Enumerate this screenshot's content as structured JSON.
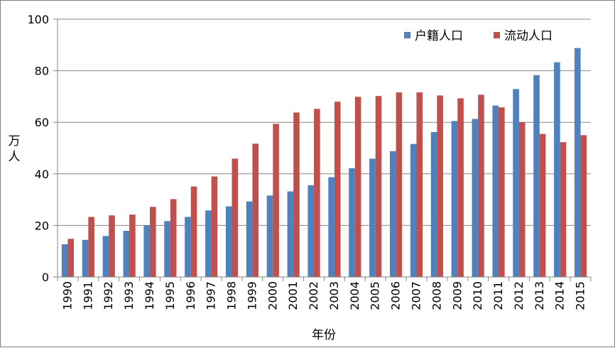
{
  "chart_data": {
    "type": "bar",
    "title": "",
    "xlabel": "年份",
    "ylabel": "万人",
    "ylim": [
      0,
      100
    ],
    "yticks": [
      0,
      20,
      40,
      60,
      80,
      100
    ],
    "grid": true,
    "legend_position": "top-right",
    "categories": [
      "1990",
      "1991",
      "1992",
      "1993",
      "1994",
      "1995",
      "1996",
      "1997",
      "1998",
      "1999",
      "2000",
      "2001",
      "2002",
      "2003",
      "2004",
      "2005",
      "2006",
      "2007",
      "2008",
      "2009",
      "2010",
      "2011",
      "2012",
      "2013",
      "2014",
      "2015"
    ],
    "series": [
      {
        "name": "户籍人口",
        "color": "#4f81bd",
        "values": [
          12.7,
          14.4,
          15.9,
          17.9,
          20.1,
          21.7,
          23.3,
          25.8,
          27.4,
          29.3,
          31.6,
          33.2,
          35.6,
          38.7,
          42.2,
          45.9,
          48.8,
          51.6,
          56.2,
          60.5,
          61.3,
          66.5,
          72.9,
          78.3,
          83.3,
          88.8
        ]
      },
      {
        "name": "流动人口",
        "color": "#c0504d",
        "values": [
          14.8,
          23.3,
          23.9,
          24.2,
          27.2,
          30.2,
          35.1,
          39.0,
          45.9,
          51.7,
          59.4,
          63.8,
          65.2,
          68.0,
          69.9,
          70.2,
          71.6,
          71.6,
          70.4,
          69.3,
          70.7,
          65.8,
          60.1,
          55.5,
          52.3,
          55.0
        ]
      }
    ]
  }
}
